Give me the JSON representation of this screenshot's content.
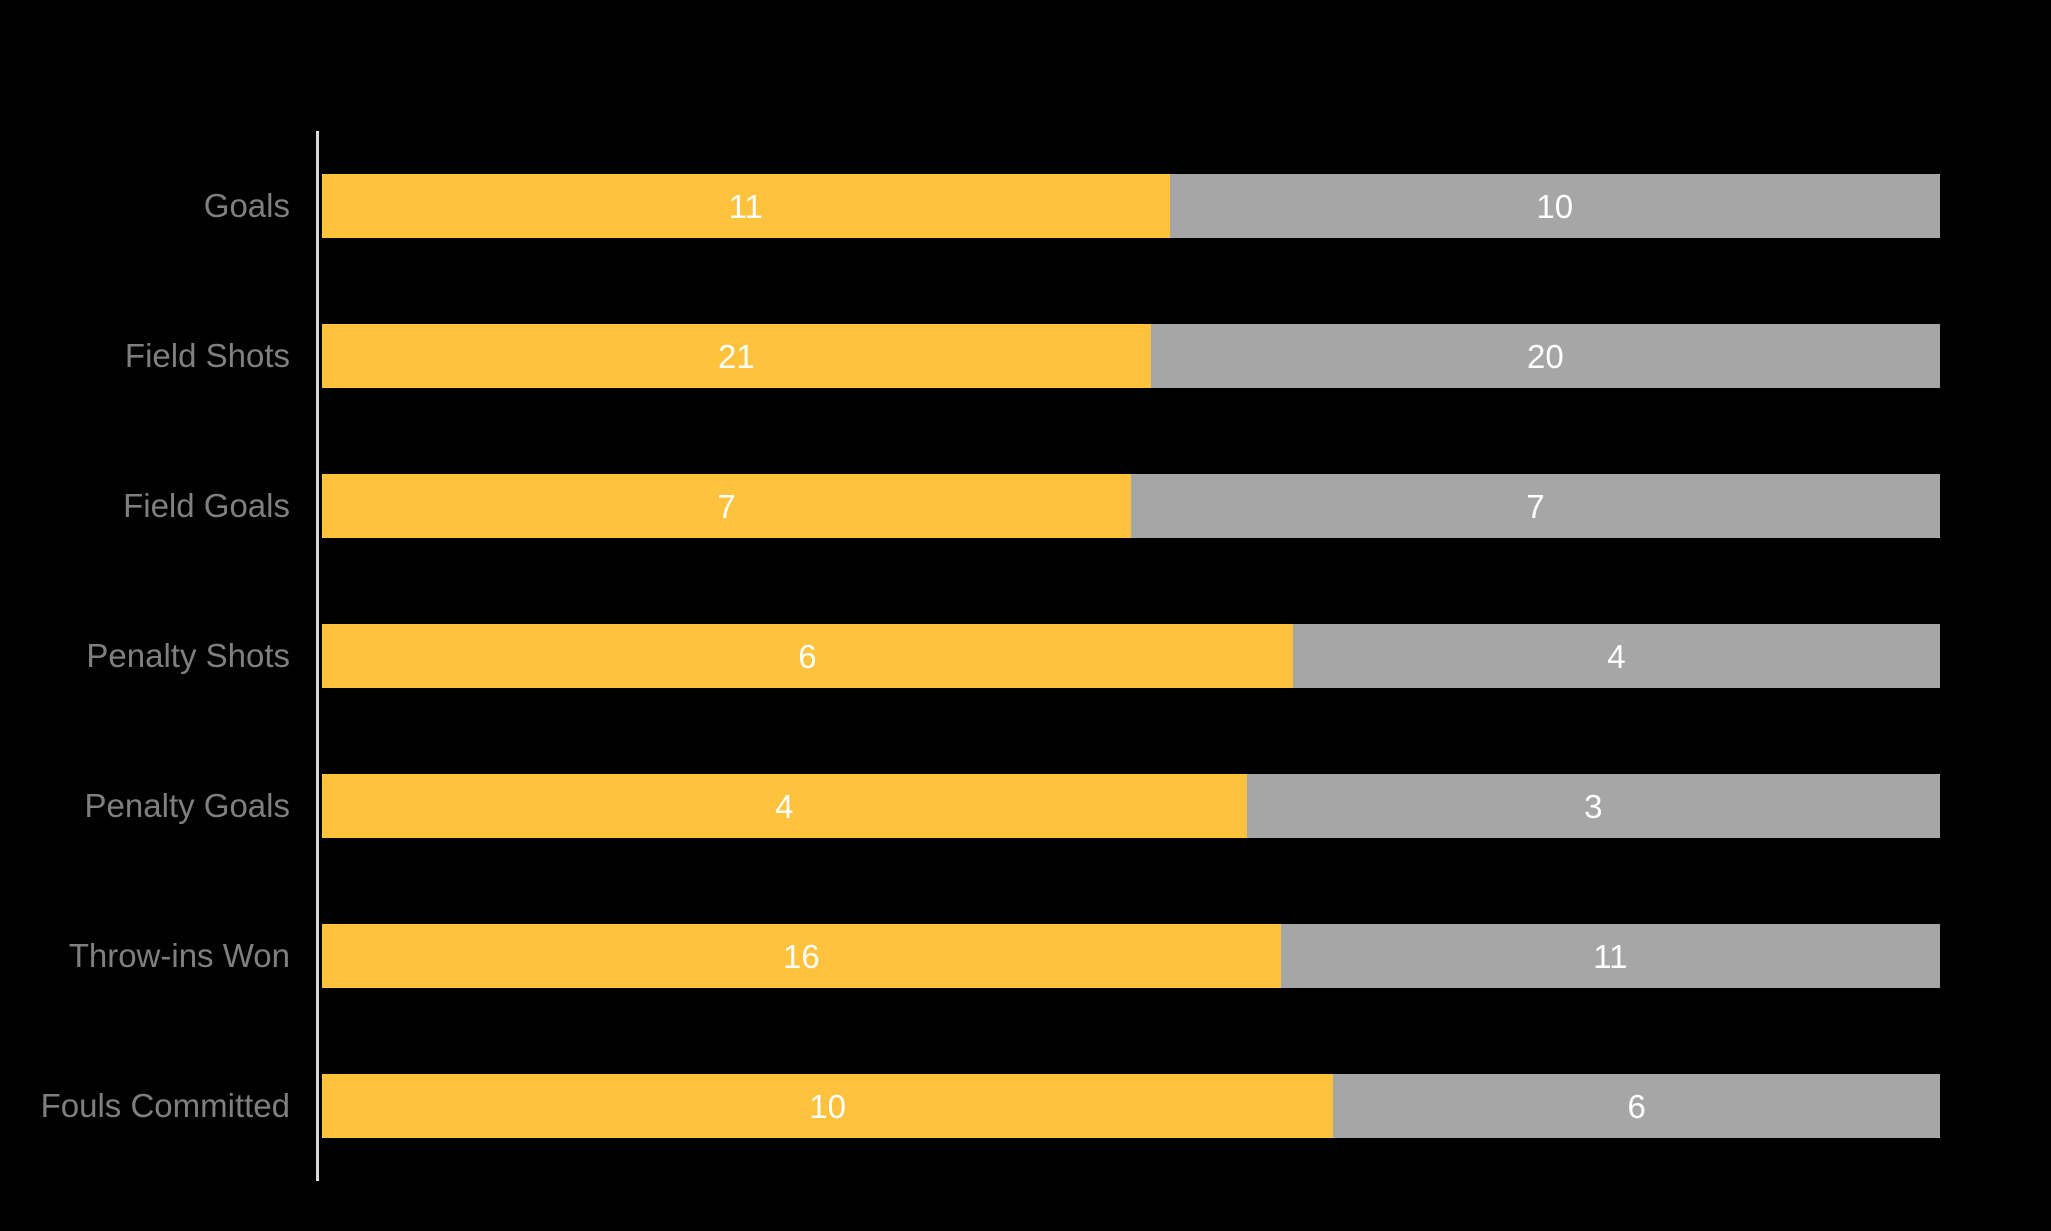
{
  "chart_data": {
    "type": "bar",
    "orientation": "horizontal",
    "stacked": true,
    "rows_normalized_to_full_width": true,
    "categories": [
      "Goals",
      "Field Shots",
      "Field Goals",
      "Penalty Shots",
      "Penalty Goals",
      "Throw-ins Won",
      "Fouls Committed"
    ],
    "series": [
      {
        "name": "yellow",
        "color": "#FFC23C",
        "values": [
          11,
          21,
          7,
          6,
          4,
          16,
          10
        ]
      },
      {
        "name": "gray",
        "color": "#A6A6A6",
        "values": [
          10,
          20,
          7,
          4,
          3,
          11,
          6
        ]
      }
    ],
    "value_labels": {
      "position": "center-of-segment",
      "color": "#FFFFFF"
    },
    "legend": "none",
    "grid": "off"
  },
  "colors": {
    "background": "#000000",
    "axis_line": "#D9D9D9",
    "category_label": "#7F7F7F",
    "bar_yellow": "#FFC23C",
    "bar_gray": "#A6A6A6",
    "value_text": "#FFFFFF"
  }
}
